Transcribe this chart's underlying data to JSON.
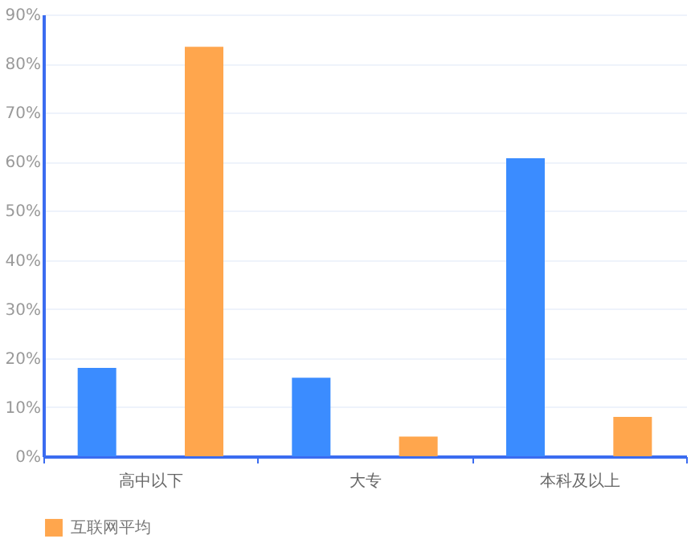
{
  "chart_data": {
    "type": "bar",
    "categories": [
      "高中以下",
      "大专",
      "本科及以上"
    ],
    "series": [
      {
        "color": "#3b8cff",
        "values": [
          18,
          16,
          60.7
        ]
      },
      {
        "name": "互联网平均",
        "color": "#ffa64d",
        "values": [
          83.4,
          4,
          8
        ]
      }
    ],
    "ylim": [
      0,
      90
    ],
    "yticks": [
      {
        "value": 0,
        "label": "0%"
      },
      {
        "value": 10,
        "label": "10%"
      },
      {
        "value": 20,
        "label": "20%"
      },
      {
        "value": 30,
        "label": "30%"
      },
      {
        "value": 40,
        "label": "40%"
      },
      {
        "value": 50,
        "label": "50%"
      },
      {
        "value": 60,
        "label": "60%"
      },
      {
        "value": 70,
        "label": "70%"
      },
      {
        "value": 80,
        "label": "80%"
      },
      {
        "value": 90,
        "label": "90%"
      }
    ],
    "grid": "y",
    "legend": "bottom"
  }
}
